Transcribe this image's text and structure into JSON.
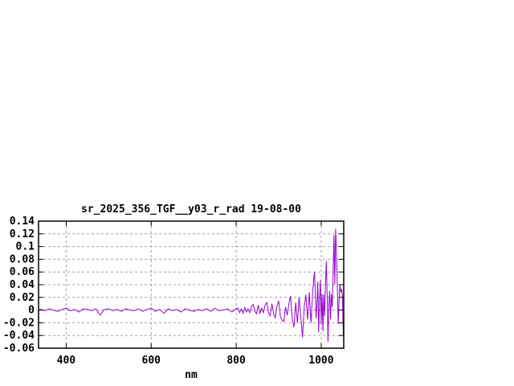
{
  "chart_data": {
    "type": "line",
    "title": "sr_2025_356_TGF__y03_r_rad 19-08-00",
    "xlabel": "nm",
    "ylabel": "",
    "xlim": [
      335,
      1053
    ],
    "ylim": [
      -0.06,
      0.14
    ],
    "grid": true,
    "legend_position": "none",
    "colors": {
      "line": "#9400d3",
      "grid": "#a0a0a0",
      "axis": "#000000",
      "background": "#ffffff"
    },
    "xticks": [
      {
        "v": 400,
        "label": "400"
      },
      {
        "v": 600,
        "label": "600"
      },
      {
        "v": 800,
        "label": "800"
      },
      {
        "v": 1000,
        "label": "1000"
      }
    ],
    "yticks": [
      {
        "v": 0.14,
        "label": "0.14"
      },
      {
        "v": 0.12,
        "label": "0.12"
      },
      {
        "v": 0.1,
        "label": "0.1"
      },
      {
        "v": 0.08,
        "label": "0.08"
      },
      {
        "v": 0.06,
        "label": "0.06"
      },
      {
        "v": 0.04,
        "label": "0.04"
      },
      {
        "v": 0.02,
        "label": "0.02"
      },
      {
        "v": 0.0,
        "label": "0"
      },
      {
        "v": -0.02,
        "label": "-0.02"
      },
      {
        "v": -0.04,
        "label": "-0.04"
      },
      {
        "v": -0.06,
        "label": "-0.06"
      }
    ],
    "series": [
      {
        "name": "sr_2025_356_TGF__y03_r_rad 19-08-00",
        "points": [
          [
            336,
            0.0
          ],
          [
            340,
            0.001
          ],
          [
            350,
            -0.001
          ],
          [
            360,
            0.002
          ],
          [
            370,
            0.0
          ],
          [
            380,
            -0.002
          ],
          [
            390,
            0.001
          ],
          [
            400,
            0.003
          ],
          [
            410,
            -0.001
          ],
          [
            420,
            0.001
          ],
          [
            430,
            -0.003
          ],
          [
            440,
            0.002
          ],
          [
            450,
            0.001
          ],
          [
            460,
            -0.001
          ],
          [
            470,
            0.002
          ],
          [
            480,
            -0.008
          ],
          [
            490,
            0.001
          ],
          [
            500,
            0.002
          ],
          [
            510,
            -0.001
          ],
          [
            520,
            0.001
          ],
          [
            530,
            -0.002
          ],
          [
            540,
            0.002
          ],
          [
            550,
            0.0
          ],
          [
            560,
            -0.001
          ],
          [
            570,
            0.002
          ],
          [
            580,
            -0.002
          ],
          [
            590,
            0.001
          ],
          [
            600,
            0.003
          ],
          [
            610,
            -0.002
          ],
          [
            620,
            0.001
          ],
          [
            630,
            -0.005
          ],
          [
            640,
            0.002
          ],
          [
            650,
            -0.001
          ],
          [
            660,
            0.001
          ],
          [
            670,
            -0.003
          ],
          [
            680,
            0.002
          ],
          [
            690,
            0.0
          ],
          [
            700,
            -0.002
          ],
          [
            710,
            0.001
          ],
          [
            720,
            -0.001
          ],
          [
            730,
            0.002
          ],
          [
            740,
            -0.002
          ],
          [
            750,
            0.003
          ],
          [
            760,
            -0.001
          ],
          [
            770,
            0.0
          ],
          [
            780,
            0.002
          ],
          [
            790,
            -0.003
          ],
          [
            800,
            0.002
          ],
          [
            804,
            0.003
          ],
          [
            808,
            -0.004
          ],
          [
            812,
            0.002
          ],
          [
            816,
            -0.005
          ],
          [
            820,
            0.004
          ],
          [
            824,
            -0.003
          ],
          [
            828,
            0.002
          ],
          [
            832,
            -0.004
          ],
          [
            836,
            0.006
          ],
          [
            840,
            0.009
          ],
          [
            844,
            -0.002
          ],
          [
            848,
            -0.006
          ],
          [
            852,
            0.008
          ],
          [
            856,
            -0.005
          ],
          [
            860,
            0.003
          ],
          [
            864,
            -0.004
          ],
          [
            868,
            0.008
          ],
          [
            872,
            0.012
          ],
          [
            876,
            -0.004
          ],
          [
            880,
            -0.009
          ],
          [
            884,
            0.01
          ],
          [
            888,
            -0.006
          ],
          [
            892,
            -0.012
          ],
          [
            896,
            0.006
          ],
          [
            900,
            0.0145
          ],
          [
            904,
            -0.01
          ],
          [
            908,
            -0.016
          ],
          [
            912,
            -0.018
          ],
          [
            916,
            0.005
          ],
          [
            920,
            -0.008
          ],
          [
            924,
            0.01
          ],
          [
            928,
            0.022
          ],
          [
            932,
            -0.015
          ],
          [
            936,
            -0.027
          ],
          [
            940,
            0.012
          ],
          [
            944,
            -0.02
          ],
          [
            948,
            0.02
          ],
          [
            952,
            -0.01
          ],
          [
            956,
            -0.043
          ],
          [
            960,
            0.005
          ],
          [
            964,
            0.024
          ],
          [
            968,
            -0.015
          ],
          [
            972,
            0.028
          ],
          [
            976,
            -0.02
          ],
          [
            980,
            0.03
          ],
          [
            982,
            0.045
          ],
          [
            984,
            0.06
          ],
          [
            986,
            0.03
          ],
          [
            988,
            -0.013
          ],
          [
            990,
            0.01
          ],
          [
            992,
            0.045
          ],
          [
            994,
            -0.035
          ],
          [
            996,
            0.015
          ],
          [
            998,
            0.047
          ],
          [
            1000,
            -0.022
          ],
          [
            1002,
            0.025
          ],
          [
            1004,
            -0.033
          ],
          [
            1006,
            0.025
          ],
          [
            1008,
            -0.01
          ],
          [
            1010,
            0.04
          ],
          [
            1012,
            0.077
          ],
          [
            1014,
            0.02
          ],
          [
            1016,
            -0.05
          ],
          [
            1018,
            0.01
          ],
          [
            1020,
            0.03
          ],
          [
            1022,
            -0.015
          ],
          [
            1024,
            0.025
          ],
          [
            1026,
            0.005
          ],
          [
            1028,
            0.06
          ],
          [
            1030,
            0.118
          ],
          [
            1032,
            0.04
          ],
          [
            1034,
            0.128
          ],
          [
            1036,
            0.09
          ],
          [
            1038,
            0.033
          ],
          [
            1040,
            -0.022
          ],
          [
            1042,
            0.016
          ],
          [
            1044,
            0.04
          ],
          [
            1046,
            0.028
          ],
          [
            1048,
            0.033
          ],
          [
            1050,
            0.02
          ],
          [
            1052,
            -0.04
          ]
        ]
      }
    ]
  }
}
